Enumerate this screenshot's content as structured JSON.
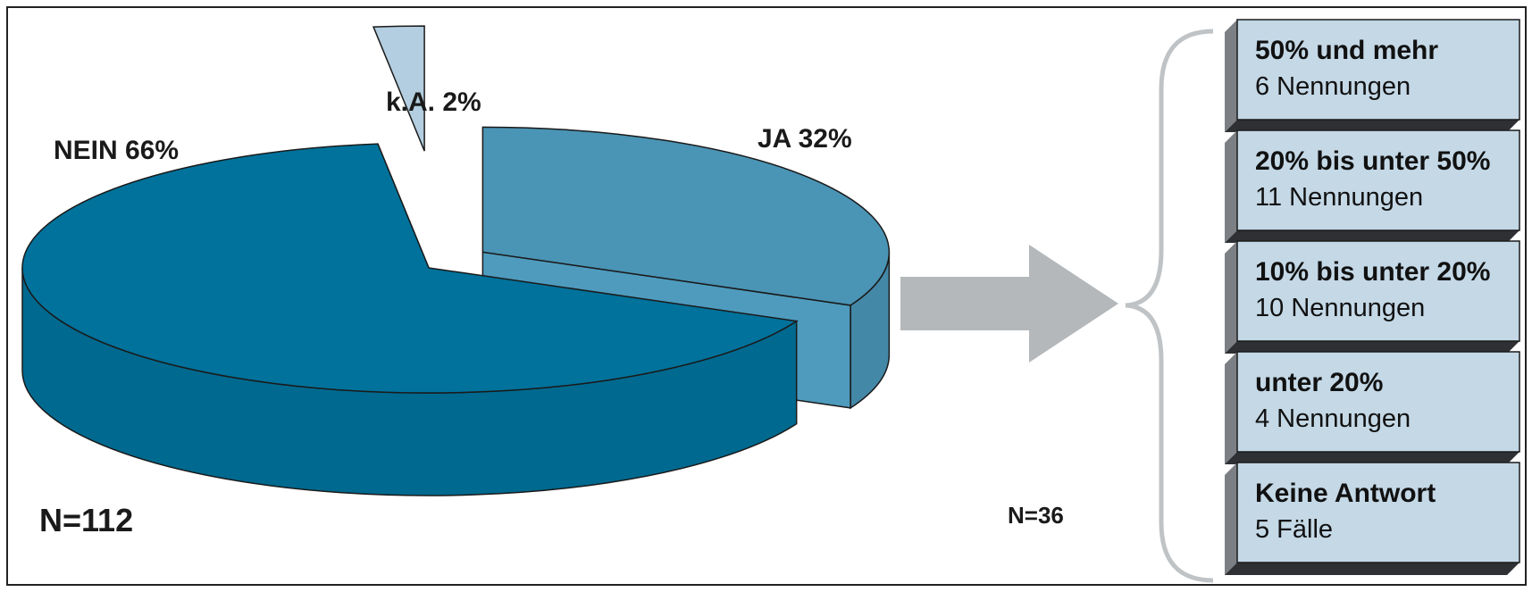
{
  "chart_data": {
    "type": "pie",
    "title": "",
    "slices": [
      {
        "label": "NEIN",
        "value": 66,
        "display": "NEIN 66%",
        "color": "#00729b"
      },
      {
        "label": "JA",
        "value": 32,
        "display": "JA 32%",
        "color": "#4a94b5"
      },
      {
        "label": "k.A.",
        "value": 2,
        "display": "k.A. 2%",
        "color": "#b3cee0"
      }
    ],
    "n_label": "N=112",
    "breakdown": {
      "n_label": "N=36",
      "items": [
        {
          "title": "50% und mehr",
          "sub": "6 Nennungen",
          "count": 6
        },
        {
          "title": "20% bis unter 50%",
          "sub": "11 Nennungen",
          "count": 11
        },
        {
          "title": "10% bis unter 20%",
          "sub": "10 Nennungen",
          "count": 10
        },
        {
          "title": "unter 20%",
          "sub": "4 Nennungen",
          "count": 4
        },
        {
          "title": "Keine Antwort",
          "sub": "5 Fälle",
          "count": 5
        }
      ],
      "box_color": "#c4d8e6",
      "brace_color": "#bfc3c6",
      "arrow_color": "#b4b8bb"
    }
  }
}
